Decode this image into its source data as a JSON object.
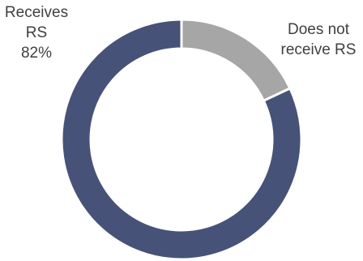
{
  "chart_data": {
    "type": "pie",
    "style": "donut",
    "categories": [
      "Receives RS",
      "Does not receive RS"
    ],
    "values": [
      82,
      18
    ],
    "colors": [
      "#475278",
      "#a6a6a6"
    ],
    "labels": [
      {
        "lines": [
          "Receives",
          "RS",
          "82%"
        ]
      },
      {
        "lines": [
          "Does not",
          "receive RS"
        ]
      }
    ],
    "legend": "none"
  }
}
